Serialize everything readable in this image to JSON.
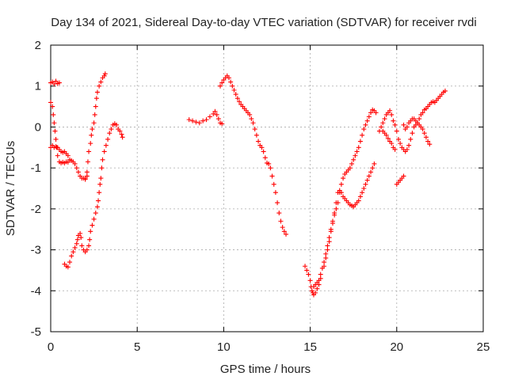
{
  "chart_data": {
    "type": "scatter",
    "title": "Day 134 of 2021, Sidereal Day-to-day VTEC variation (SDTVAR) for receiver rvdi",
    "xlabel": "GPS time / hours",
    "ylabel": "SDTVAR / TECUs",
    "xlim": [
      0,
      25
    ],
    "ylim": [
      -5,
      2
    ],
    "xticks": [
      0,
      5,
      10,
      15,
      20,
      25
    ],
    "yticks": [
      -5,
      -4,
      -3,
      -2,
      -1,
      0,
      1,
      2
    ],
    "grid": true,
    "marker": "plus",
    "color": "#ff0000",
    "segments": [
      [
        [
          0.0,
          1.08
        ],
        [
          0.1,
          1.1
        ],
        [
          0.2,
          1.05
        ],
        [
          0.3,
          1.12
        ],
        [
          0.4,
          1.06
        ],
        [
          0.5,
          1.08
        ]
      ],
      [
        [
          0.0,
          0.6
        ],
        [
          0.1,
          0.5
        ],
        [
          0.15,
          0.3
        ],
        [
          0.2,
          0.1
        ],
        [
          0.25,
          -0.1
        ],
        [
          0.3,
          -0.3
        ],
        [
          0.35,
          -0.5
        ],
        [
          0.4,
          -0.7
        ],
        [
          0.5,
          -0.85
        ],
        [
          0.6,
          -0.88
        ],
        [
          0.7,
          -0.86
        ],
        [
          0.8,
          -0.88
        ],
        [
          0.9,
          -0.85
        ],
        [
          1.0,
          -0.86
        ]
      ],
      [
        [
          0.0,
          -0.5
        ],
        [
          0.1,
          -0.45
        ],
        [
          0.2,
          -0.5
        ],
        [
          0.3,
          -0.48
        ],
        [
          0.4,
          -0.5
        ],
        [
          0.5,
          -0.55
        ],
        [
          0.6,
          -0.6
        ],
        [
          0.7,
          -0.62
        ],
        [
          0.8,
          -0.6
        ],
        [
          0.9,
          -0.65
        ],
        [
          1.0,
          -0.7
        ],
        [
          1.1,
          -0.8
        ],
        [
          1.2,
          -0.82
        ],
        [
          1.3,
          -0.85
        ],
        [
          1.4,
          -0.9
        ],
        [
          1.5,
          -1.0
        ],
        [
          1.6,
          -1.1
        ],
        [
          1.7,
          -1.2
        ],
        [
          1.8,
          -1.25
        ],
        [
          1.9,
          -1.25
        ],
        [
          2.0,
          -1.28
        ],
        [
          2.1,
          -1.2
        ]
      ],
      [
        [
          0.8,
          -3.35
        ],
        [
          0.9,
          -3.4
        ],
        [
          1.0,
          -3.42
        ],
        [
          1.1,
          -3.3
        ],
        [
          1.2,
          -3.15
        ],
        [
          1.3,
          -3.05
        ],
        [
          1.4,
          -2.95
        ],
        [
          1.5,
          -2.85
        ],
        [
          1.55,
          -2.75
        ],
        [
          1.6,
          -2.65
        ],
        [
          1.7,
          -2.6
        ],
        [
          1.75,
          -2.7
        ],
        [
          1.8,
          -2.9
        ],
        [
          1.9,
          -3.0
        ],
        [
          2.0,
          -3.05
        ],
        [
          2.1,
          -3.0
        ],
        [
          2.2,
          -2.9
        ],
        [
          2.25,
          -2.75
        ],
        [
          2.3,
          -2.55
        ],
        [
          2.4,
          -2.4
        ],
        [
          2.5,
          -2.25
        ],
        [
          2.6,
          -2.1
        ],
        [
          2.7,
          -1.95
        ],
        [
          2.75,
          -1.8
        ],
        [
          2.8,
          -1.6
        ],
        [
          2.85,
          -1.4
        ],
        [
          2.9,
          -1.25
        ],
        [
          2.95,
          -1.0
        ],
        [
          3.0,
          -0.8
        ],
        [
          3.1,
          -0.6
        ],
        [
          3.2,
          -0.45
        ],
        [
          3.3,
          -0.3
        ],
        [
          3.4,
          -0.15
        ],
        [
          3.5,
          -0.05
        ],
        [
          3.6,
          0.05
        ],
        [
          3.7,
          0.08
        ],
        [
          3.8,
          0.05
        ],
        [
          3.9,
          -0.05
        ],
        [
          4.0,
          -0.1
        ],
        [
          4.1,
          -0.18
        ],
        [
          4.15,
          -0.25
        ]
      ],
      [
        [
          2.0,
          -1.25
        ],
        [
          2.1,
          -1.1
        ],
        [
          2.15,
          -0.85
        ],
        [
          2.2,
          -0.6
        ],
        [
          2.3,
          -0.4
        ],
        [
          2.35,
          -0.2
        ],
        [
          2.4,
          -0.05
        ],
        [
          2.5,
          0.1
        ],
        [
          2.55,
          0.3
        ],
        [
          2.6,
          0.5
        ],
        [
          2.65,
          0.7
        ],
        [
          2.7,
          0.85
        ],
        [
          2.8,
          1.0
        ],
        [
          2.9,
          1.1
        ],
        [
          3.0,
          1.2
        ],
        [
          3.1,
          1.25
        ],
        [
          3.15,
          1.3
        ]
      ],
      [
        [
          8.0,
          0.18
        ],
        [
          8.2,
          0.15
        ],
        [
          8.4,
          0.12
        ],
        [
          8.6,
          0.1
        ],
        [
          8.8,
          0.15
        ],
        [
          9.0,
          0.18
        ],
        [
          9.2,
          0.25
        ],
        [
          9.4,
          0.32
        ],
        [
          9.5,
          0.38
        ],
        [
          9.6,
          0.3
        ],
        [
          9.7,
          0.2
        ],
        [
          9.8,
          0.1
        ],
        [
          9.9,
          0.08
        ]
      ],
      [
        [
          9.8,
          1.0
        ],
        [
          9.9,
          1.08
        ],
        [
          10.0,
          1.15
        ],
        [
          10.1,
          1.2
        ],
        [
          10.2,
          1.25
        ],
        [
          10.3,
          1.2
        ],
        [
          10.4,
          1.1
        ],
        [
          10.5,
          1.0
        ],
        [
          10.6,
          0.9
        ],
        [
          10.7,
          0.8
        ],
        [
          10.8,
          0.7
        ],
        [
          10.9,
          0.62
        ],
        [
          11.0,
          0.55
        ],
        [
          11.1,
          0.5
        ],
        [
          11.2,
          0.45
        ],
        [
          11.3,
          0.4
        ],
        [
          11.4,
          0.35
        ],
        [
          11.5,
          0.3
        ],
        [
          11.6,
          0.2
        ],
        [
          11.7,
          0.1
        ],
        [
          11.8,
          -0.05
        ],
        [
          11.9,
          -0.2
        ],
        [
          12.0,
          -0.35
        ],
        [
          12.1,
          -0.45
        ],
        [
          12.2,
          -0.5
        ],
        [
          12.3,
          -0.6
        ],
        [
          12.4,
          -0.75
        ],
        [
          12.5,
          -0.88
        ],
        [
          12.6,
          -0.9
        ],
        [
          12.7,
          -1.0
        ],
        [
          12.8,
          -1.2
        ],
        [
          12.9,
          -1.4
        ],
        [
          13.0,
          -1.6
        ],
        [
          13.1,
          -1.85
        ],
        [
          13.2,
          -2.1
        ],
        [
          13.3,
          -2.3
        ],
        [
          13.4,
          -2.45
        ],
        [
          13.5,
          -2.55
        ],
        [
          13.6,
          -2.62
        ]
      ],
      [
        [
          14.7,
          -3.4
        ],
        [
          14.8,
          -3.5
        ],
        [
          14.9,
          -3.6
        ],
        [
          15.0,
          -3.75
        ],
        [
          15.05,
          -3.9
        ],
        [
          15.1,
          -4.0
        ],
        [
          15.15,
          -4.05
        ],
        [
          15.2,
          -4.1
        ],
        [
          15.3,
          -4.05
        ],
        [
          15.4,
          -3.95
        ],
        [
          15.5,
          -3.85
        ],
        [
          15.6,
          -3.7
        ]
      ],
      [
        [
          15.2,
          -3.9
        ],
        [
          15.3,
          -3.85
        ],
        [
          15.4,
          -3.8
        ],
        [
          15.5,
          -3.75
        ],
        [
          15.6,
          -3.6
        ],
        [
          15.7,
          -3.45
        ],
        [
          15.8,
          -3.3
        ],
        [
          15.9,
          -3.1
        ],
        [
          16.0,
          -2.9
        ],
        [
          16.1,
          -2.7
        ],
        [
          16.2,
          -2.5
        ],
        [
          16.3,
          -2.3
        ],
        [
          16.4,
          -2.15
        ],
        [
          16.5,
          -2.0
        ],
        [
          16.6,
          -1.85
        ],
        [
          16.7,
          -1.6
        ],
        [
          16.8,
          -1.4
        ],
        [
          16.9,
          -1.25
        ],
        [
          17.0,
          -1.15
        ],
        [
          17.1,
          -1.1
        ],
        [
          17.2,
          -1.05
        ],
        [
          17.3,
          -1.0
        ],
        [
          17.4,
          -0.9
        ],
        [
          17.5,
          -0.8
        ],
        [
          17.6,
          -0.7
        ],
        [
          17.7,
          -0.6
        ],
        [
          17.8,
          -0.5
        ],
        [
          17.9,
          -0.35
        ],
        [
          18.0,
          -0.2
        ],
        [
          18.1,
          -0.05
        ],
        [
          18.2,
          0.05
        ],
        [
          18.3,
          0.15
        ],
        [
          18.4,
          0.25
        ],
        [
          18.5,
          0.35
        ],
        [
          18.6,
          0.42
        ],
        [
          18.7,
          0.4
        ],
        [
          18.8,
          0.35
        ]
      ],
      [
        [
          15.8,
          -3.4
        ],
        [
          15.9,
          -3.2
        ],
        [
          16.0,
          -3.0
        ],
        [
          16.1,
          -2.8
        ],
        [
          16.2,
          -2.55
        ],
        [
          16.3,
          -2.35
        ],
        [
          16.4,
          -2.1
        ],
        [
          16.5,
          -1.85
        ],
        [
          16.6,
          -1.6
        ],
        [
          16.7,
          -1.55
        ],
        [
          16.8,
          -1.6
        ],
        [
          16.9,
          -1.7
        ],
        [
          17.0,
          -1.75
        ],
        [
          17.1,
          -1.8
        ],
        [
          17.2,
          -1.85
        ],
        [
          17.3,
          -1.9
        ],
        [
          17.4,
          -1.92
        ],
        [
          17.5,
          -1.95
        ],
        [
          17.6,
          -1.9
        ],
        [
          17.7,
          -1.85
        ],
        [
          17.8,
          -1.8
        ],
        [
          17.9,
          -1.7
        ],
        [
          18.0,
          -1.6
        ],
        [
          18.1,
          -1.5
        ],
        [
          18.2,
          -1.4
        ],
        [
          18.3,
          -1.3
        ],
        [
          18.4,
          -1.2
        ],
        [
          18.5,
          -1.1
        ],
        [
          18.6,
          -1.0
        ],
        [
          18.7,
          -0.9
        ]
      ],
      [
        [
          19.0,
          -0.1
        ],
        [
          19.1,
          0.0
        ],
        [
          19.2,
          0.1
        ],
        [
          19.3,
          0.2
        ],
        [
          19.4,
          0.3
        ],
        [
          19.5,
          0.35
        ],
        [
          19.6,
          0.4
        ],
        [
          19.7,
          0.3
        ],
        [
          19.8,
          0.15
        ],
        [
          19.9,
          0.05
        ],
        [
          20.0,
          -0.1
        ],
        [
          20.1,
          -0.3
        ],
        [
          20.2,
          -0.4
        ],
        [
          20.3,
          -0.5
        ],
        [
          20.4,
          -0.55
        ],
        [
          20.5,
          -0.6
        ],
        [
          20.6,
          -0.55
        ],
        [
          20.7,
          -0.45
        ],
        [
          20.8,
          -0.3
        ],
        [
          20.9,
          -0.15
        ],
        [
          21.0,
          0.0
        ],
        [
          21.1,
          0.05
        ],
        [
          21.2,
          0.1
        ],
        [
          21.3,
          0.2
        ],
        [
          21.4,
          0.3
        ],
        [
          21.5,
          0.35
        ],
        [
          21.6,
          0.42
        ],
        [
          21.7,
          0.45
        ],
        [
          21.8,
          0.5
        ],
        [
          21.9,
          0.55
        ],
        [
          22.0,
          0.6
        ],
        [
          22.1,
          0.62
        ],
        [
          22.2,
          0.6
        ],
        [
          22.3,
          0.65
        ],
        [
          22.4,
          0.7
        ],
        [
          22.5,
          0.75
        ],
        [
          22.6,
          0.8
        ],
        [
          22.7,
          0.85
        ],
        [
          22.8,
          0.88
        ]
      ],
      [
        [
          19.2,
          -0.1
        ],
        [
          19.3,
          -0.15
        ],
        [
          19.4,
          -0.2
        ],
        [
          19.5,
          -0.28
        ],
        [
          19.6,
          -0.35
        ],
        [
          19.7,
          -0.4
        ],
        [
          19.8,
          -0.5
        ],
        [
          19.9,
          -0.55
        ]
      ],
      [
        [
          20.0,
          -1.4
        ],
        [
          20.1,
          -1.35
        ],
        [
          20.2,
          -1.3
        ],
        [
          20.3,
          -1.25
        ],
        [
          20.4,
          -1.2
        ]
      ],
      [
        [
          20.4,
          0.05
        ],
        [
          20.5,
          -0.05
        ],
        [
          20.6,
          0.0
        ],
        [
          20.7,
          0.1
        ],
        [
          20.8,
          0.15
        ],
        [
          20.9,
          0.2
        ],
        [
          21.0,
          0.2
        ],
        [
          21.1,
          0.15
        ],
        [
          21.2,
          0.1
        ],
        [
          21.3,
          0.05
        ],
        [
          21.4,
          0.0
        ],
        [
          21.5,
          -0.05
        ],
        [
          21.6,
          -0.15
        ],
        [
          21.7,
          -0.25
        ],
        [
          21.8,
          -0.35
        ],
        [
          21.9,
          -0.42
        ]
      ]
    ]
  }
}
